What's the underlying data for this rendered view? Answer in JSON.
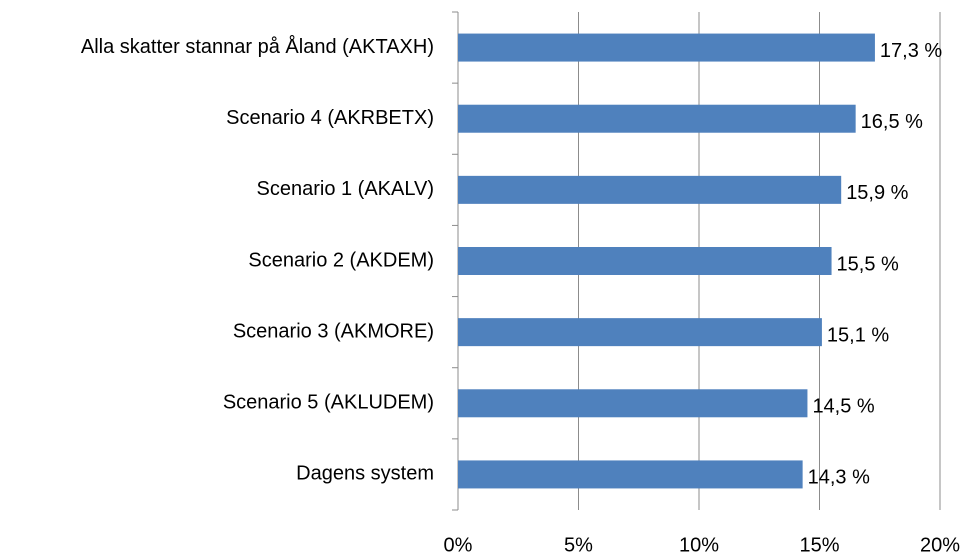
{
  "chart_data": {
    "type": "bar",
    "orientation": "horizontal",
    "categories": [
      "Alla skatter stannar på Åland (AKTAXH)",
      "Scenario 4 (AKRBETX)",
      "Scenario 1 (AKALV)",
      "Scenario 2 (AKDEM)",
      "Scenario 3 (AKMORE)",
      "Scenario 5 (AKLUDEM)",
      "Dagens system"
    ],
    "values": [
      17.3,
      16.5,
      15.9,
      15.5,
      15.1,
      14.5,
      14.3
    ],
    "value_labels": [
      "17,3 %",
      "16,5 %",
      "15,9 %",
      "15,5 %",
      "15,1 %",
      "14,5 %",
      "14,3 %"
    ],
    "color": "#4f81bd",
    "xlim": [
      0,
      20
    ],
    "xticks": [
      {
        "value": 0,
        "label": "0%"
      },
      {
        "value": 5,
        "label": "5%"
      },
      {
        "value": 10,
        "label": "10%"
      },
      {
        "value": 15,
        "label": "15%"
      },
      {
        "value": 20,
        "label": "20%"
      }
    ],
    "grid": true
  }
}
